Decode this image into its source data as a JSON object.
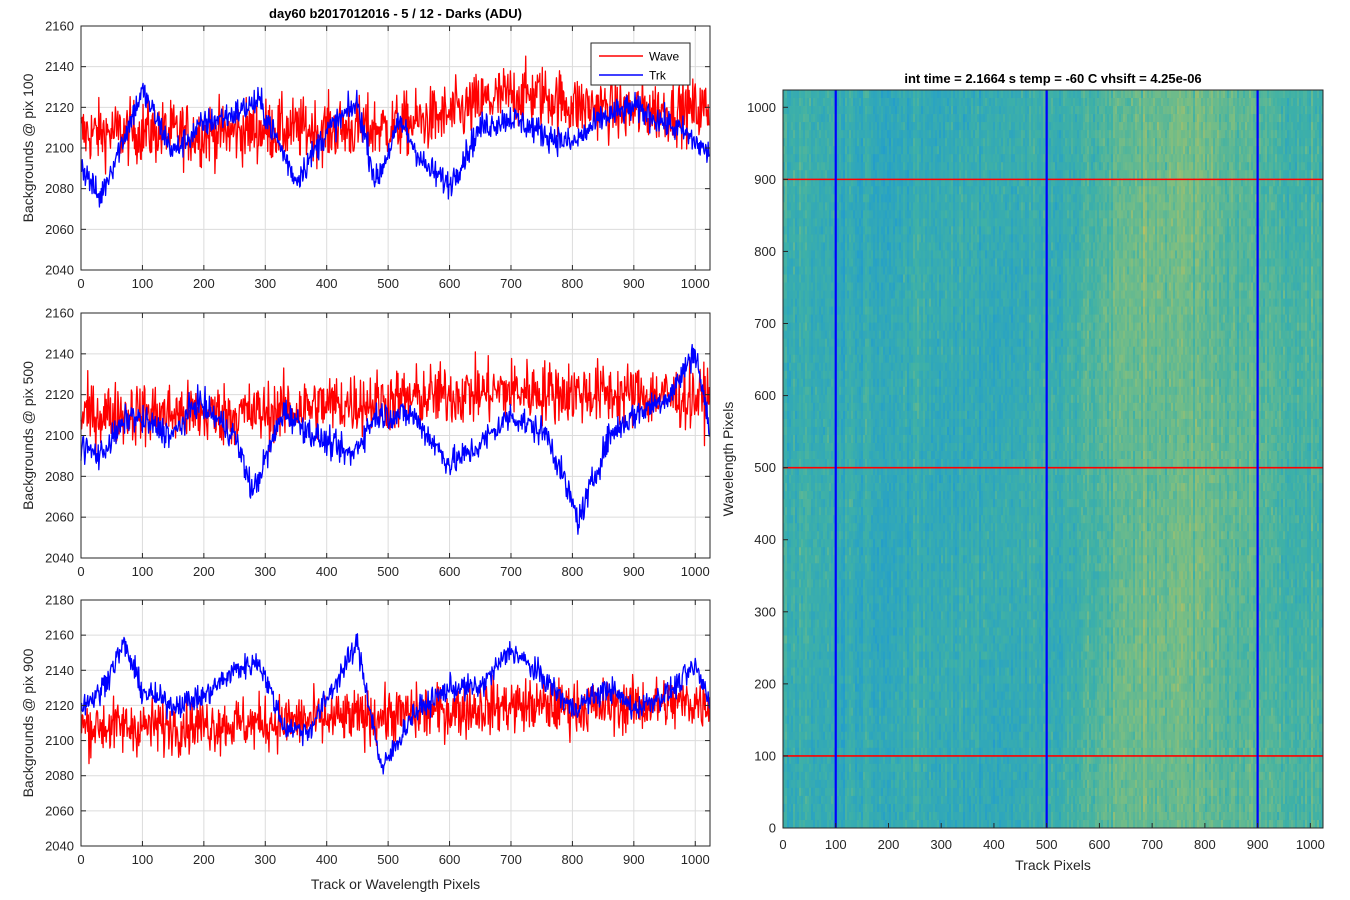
{
  "figure_title": "day60 b2017012016 - 5 / 12 - Darks (ADU)",
  "chart_data": [
    {
      "type": "line",
      "id": "panel1",
      "title": "day60 b2017012016 - 5 / 12 - Darks (ADU)",
      "ylabel": "Backgrounds @ pix 100",
      "xlabel": "",
      "xlim": [
        0,
        1024
      ],
      "ylim": [
        2040,
        2160
      ],
      "xticks": [
        0,
        100,
        200,
        300,
        400,
        500,
        600,
        700,
        800,
        900,
        1000
      ],
      "yticks": [
        2040,
        2060,
        2080,
        2100,
        2120,
        2140,
        2160
      ],
      "grid": true,
      "legend": {
        "placement": "top-right",
        "entries": [
          "Wave",
          "Trk"
        ]
      },
      "series": [
        {
          "name": "Wave",
          "color": "#ff0000",
          "x": [
            0,
            100,
            200,
            300,
            400,
            500,
            600,
            660,
            700,
            750,
            800,
            900,
            1023
          ],
          "mean": [
            2107,
            2108,
            2107,
            2109,
            2109,
            2110,
            2116,
            2123,
            2126,
            2126,
            2121,
            2118,
            2119
          ],
          "noise": 11,
          "xmin": 0,
          "xmax": 1023,
          "n": 1024
        },
        {
          "name": "Trk",
          "color": "#0000ff",
          "x": [
            0,
            30,
            60,
            100,
            150,
            200,
            250,
            290,
            350,
            400,
            450,
            480,
            520,
            560,
            600,
            650,
            700,
            760,
            800,
            850,
            900,
            980,
            1023
          ],
          "mean": [
            2092,
            2075,
            2098,
            2128,
            2098,
            2112,
            2117,
            2123,
            2084,
            2108,
            2122,
            2083,
            2113,
            2091,
            2082,
            2110,
            2115,
            2106,
            2102,
            2115,
            2120,
            2108,
            2097
          ],
          "noise": 5,
          "xmin": 0,
          "xmax": 1023,
          "n": 1024
        }
      ]
    },
    {
      "type": "line",
      "id": "panel2",
      "title": "",
      "ylabel": "Backgrounds @ pix 500",
      "xlabel": "",
      "xlim": [
        0,
        1024
      ],
      "ylim": [
        2040,
        2160
      ],
      "xticks": [
        0,
        100,
        200,
        300,
        400,
        500,
        600,
        700,
        800,
        900,
        1000
      ],
      "yticks": [
        2040,
        2060,
        2080,
        2100,
        2120,
        2140,
        2160
      ],
      "grid": true,
      "series": [
        {
          "name": "Wave",
          "color": "#ff0000",
          "x": [
            0,
            100,
            200,
            300,
            400,
            500,
            600,
            700,
            800,
            900,
            1023
          ],
          "mean": [
            2110,
            2111,
            2110,
            2111,
            2115,
            2117,
            2120,
            2122,
            2121,
            2120,
            2118
          ],
          "noise": 11,
          "xmin": 0,
          "xmax": 1023,
          "n": 1024
        },
        {
          "name": "Trk",
          "color": "#0000ff",
          "x": [
            0,
            30,
            80,
            150,
            190,
            250,
            280,
            330,
            380,
            440,
            480,
            540,
            600,
            640,
            700,
            760,
            810,
            860,
            900,
            960,
            1000,
            1023
          ],
          "mean": [
            2095,
            2090,
            2110,
            2100,
            2117,
            2100,
            2072,
            2112,
            2100,
            2090,
            2110,
            2110,
            2086,
            2093,
            2110,
            2100,
            2058,
            2100,
            2110,
            2120,
            2142,
            2103
          ],
          "noise": 5,
          "xmin": 0,
          "xmax": 1023,
          "n": 1024
        }
      ]
    },
    {
      "type": "line",
      "id": "panel3",
      "title": "",
      "ylabel": "Backgrounds @ pix 900",
      "xlabel": "Track or Wavelength Pixels",
      "xlim": [
        0,
        1024
      ],
      "ylim": [
        2040,
        2180
      ],
      "xticks": [
        0,
        100,
        200,
        300,
        400,
        500,
        600,
        700,
        800,
        900,
        1000
      ],
      "yticks": [
        2040,
        2060,
        2080,
        2100,
        2120,
        2140,
        2160,
        2180
      ],
      "grid": true,
      "series": [
        {
          "name": "Wave",
          "color": "#ff0000",
          "x": [
            0,
            100,
            200,
            300,
            400,
            500,
            600,
            700,
            800,
            900,
            1023
          ],
          "mean": [
            2108,
            2108,
            2109,
            2110,
            2112,
            2114,
            2117,
            2120,
            2119,
            2120,
            2122
          ],
          "noise": 11,
          "xmin": 0,
          "xmax": 1023,
          "n": 1024
        },
        {
          "name": "Trk",
          "color": "#0000ff",
          "x": [
            0,
            30,
            70,
            100,
            150,
            200,
            250,
            290,
            330,
            370,
            410,
            450,
            490,
            540,
            600,
            650,
            700,
            760,
            800,
            860,
            900,
            960,
            1000,
            1023
          ],
          "mean": [
            2120,
            2127,
            2155,
            2128,
            2120,
            2125,
            2140,
            2145,
            2108,
            2105,
            2130,
            2155,
            2083,
            2115,
            2130,
            2130,
            2152,
            2133,
            2118,
            2130,
            2118,
            2128,
            2142,
            2123
          ],
          "noise": 5,
          "xmin": 0,
          "xmax": 1023,
          "n": 1024
        }
      ]
    },
    {
      "type": "heatmap",
      "id": "image",
      "title": "int time = 2.1664 s    temp = -60 C    vhsift = 4.25e-06",
      "xlabel": "Track Pixels",
      "ylabel": "Wavelength Pixels",
      "xlim": [
        0,
        1024
      ],
      "ylim": [
        0,
        1024
      ],
      "xticks": [
        0,
        100,
        200,
        300,
        400,
        500,
        600,
        700,
        800,
        900,
        1000
      ],
      "yticks": [
        0,
        100,
        200,
        300,
        400,
        500,
        600,
        700,
        800,
        900,
        1000
      ],
      "colormap": [
        "#1d8fd8",
        "#25a0c8",
        "#3fb1a6",
        "#7cbe82",
        "#c3c05a"
      ],
      "columns": [
        {
          "x": 0,
          "level": 0.48
        },
        {
          "x": 100,
          "level": 0.42
        },
        {
          "x": 200,
          "level": 0.4
        },
        {
          "x": 300,
          "level": 0.4
        },
        {
          "x": 400,
          "level": 0.41
        },
        {
          "x": 500,
          "level": 0.44
        },
        {
          "x": 560,
          "level": 0.5
        },
        {
          "x": 620,
          "level": 0.6
        },
        {
          "x": 680,
          "level": 0.68
        },
        {
          "x": 740,
          "level": 0.7
        },
        {
          "x": 800,
          "level": 0.66
        },
        {
          "x": 880,
          "level": 0.6
        },
        {
          "x": 940,
          "level": 0.55
        },
        {
          "x": 1024,
          "level": 0.52
        }
      ],
      "marker_rows": {
        "values": [
          100,
          500,
          900
        ],
        "color": "#ff0000"
      },
      "marker_cols": {
        "values": [
          100,
          500,
          900
        ],
        "color": "#0000ff"
      }
    }
  ]
}
